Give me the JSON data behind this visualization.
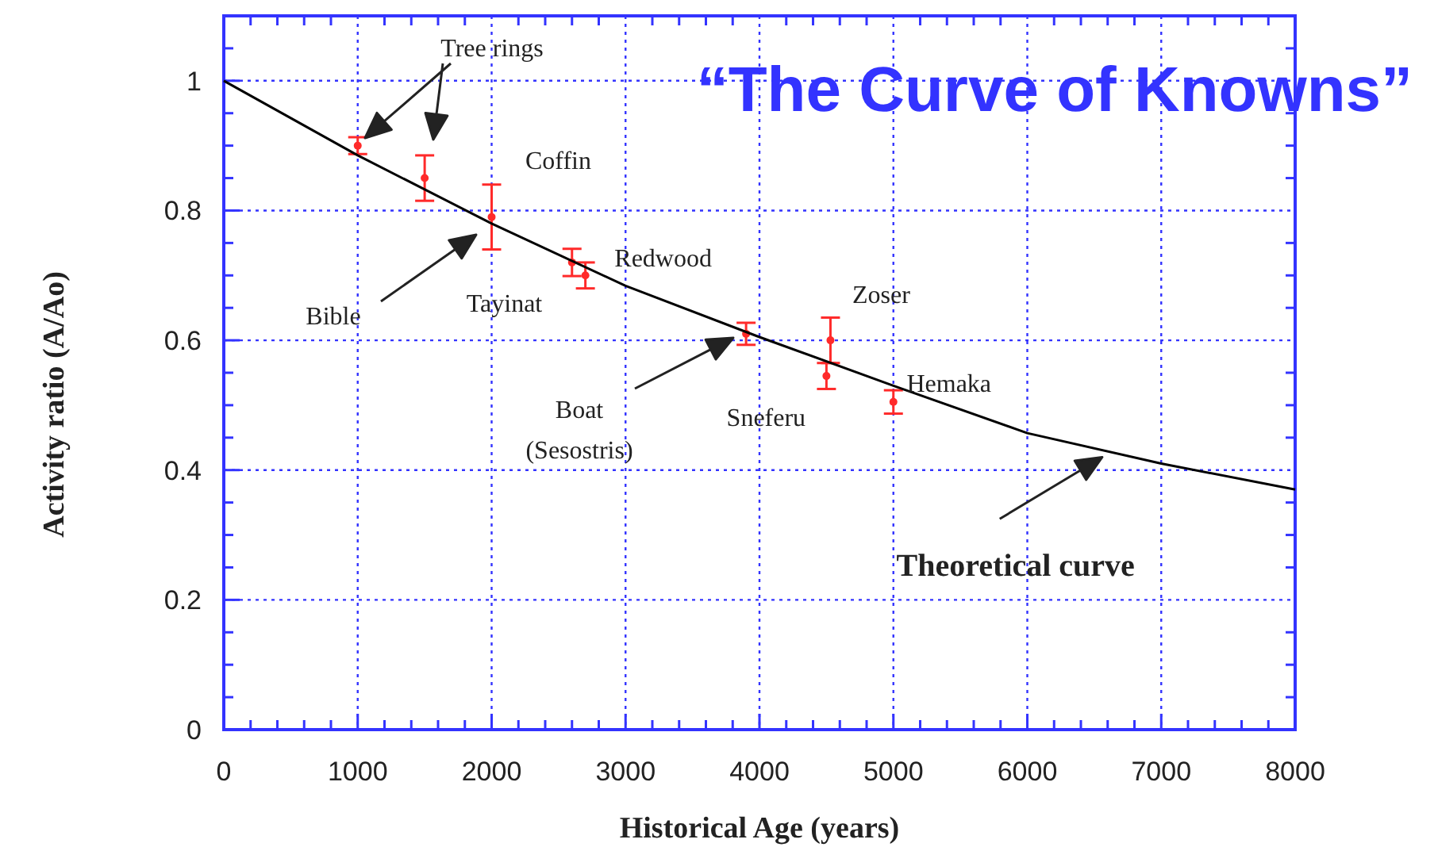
{
  "chart_data": {
    "type": "scatter",
    "title": "“The Curve of Knowns”",
    "xlabel": "Historical Age (years)",
    "ylabel": "Activity ratio (A/Ao)",
    "xlim": [
      0,
      8000
    ],
    "xticks": [
      0,
      1000,
      2000,
      3000,
      4000,
      5000,
      6000,
      7000,
      8000
    ],
    "ylim": [
      0,
      1.1
    ],
    "yticks": [
      0,
      0.2,
      0.4,
      0.6,
      0.8,
      1
    ],
    "grid": true,
    "series": [
      {
        "color": "#ff2a2a",
        "marker": "circle",
        "x": [
          1000,
          1500,
          2000,
          2600,
          2700,
          3900,
          4530,
          4500,
          5000
        ],
        "values": [
          0.9,
          0.85,
          0.79,
          0.72,
          0.7,
          0.61,
          0.6,
          0.545,
          0.505
        ],
        "errors": [
          0.013,
          0.035,
          0.05,
          0.021,
          0.02,
          0.017,
          0.035,
          0.02,
          0.018
        ]
      },
      {
        "type": "line",
        "color": "#000000",
        "x": [
          0,
          1000,
          2000,
          3000,
          4000,
          5000,
          6000,
          7000,
          8000
        ],
        "values": [
          1,
          0.885,
          0.78,
          0.684,
          0.605,
          0.53,
          0.457,
          0.41,
          0.37
        ]
      }
    ],
    "annotations": [
      "Tree rings",
      {
        "text": "Coffin",
        "x": 2000,
        "y": 0.79
      },
      "Bible",
      {
        "text": "Tayinat",
        "x": 2000,
        "y": 0.79
      },
      {
        "text": "Redwood",
        "x": 2700,
        "y": 0.7
      },
      "Boat\n(Sesostris)",
      {
        "text": "Zoser",
        "x": 4530,
        "y": 0.6
      },
      {
        "text": "Sneferu",
        "x": 4500,
        "y": 0.545
      },
      {
        "text": "Hemaka",
        "x": 5000,
        "y": 0.505
      },
      {
        "text": "Theoretical curve",
        "x": 6600,
        "y": 0.425
      }
    ]
  }
}
